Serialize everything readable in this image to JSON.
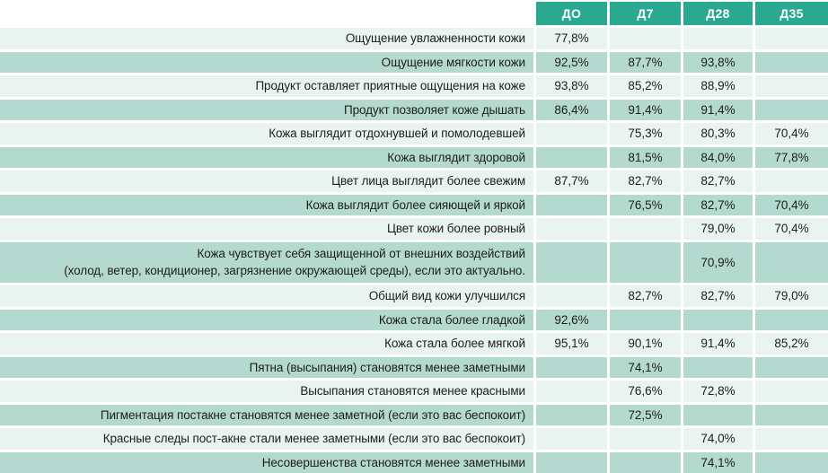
{
  "chart_data": {
    "type": "table",
    "title": "",
    "columns": [
      "ДО",
      "Д7",
      "Д28",
      "Д35"
    ],
    "value_unit": "%",
    "rows": [
      {
        "label": "Ощущение увлажненности кожи",
        "values": [
          77.8,
          null,
          null,
          null
        ]
      },
      {
        "label": "Ощущение мягкости кожи",
        "values": [
          92.5,
          87.7,
          93.8,
          null
        ]
      },
      {
        "label": "Продукт оставляет приятные ощущения на коже",
        "values": [
          93.8,
          85.2,
          88.9,
          null
        ]
      },
      {
        "label": "Продукт позволяет коже дышать",
        "values": [
          86.4,
          91.4,
          91.4,
          null
        ]
      },
      {
        "label": "Кожа выглядит отдохнувшей и помолодевшей",
        "values": [
          null,
          75.3,
          80.3,
          70.4
        ]
      },
      {
        "label": "Кожа выглядит здоровой",
        "values": [
          null,
          81.5,
          84.0,
          77.8
        ]
      },
      {
        "label": "Цвет лица выглядит более свежим",
        "values": [
          87.7,
          82.7,
          82.7,
          null
        ]
      },
      {
        "label": "Кожа выглядит более сияющей и яркой",
        "values": [
          null,
          76.5,
          82.7,
          70.4
        ]
      },
      {
        "label": "Цвет кожи более ровный",
        "values": [
          null,
          null,
          79.0,
          70.4
        ]
      },
      {
        "label": "Кожа чувствует себя защищенной от внешних воздействий (холод, ветер, кондиционер, загрязнение окружающей среды), если это актуально.",
        "values": [
          null,
          null,
          70.9,
          null
        ]
      },
      {
        "label": "Общий вид кожи улучшился",
        "values": [
          null,
          82.7,
          82.7,
          79.0
        ]
      },
      {
        "label": "Кожа стала более гладкой",
        "values": [
          92.6,
          null,
          null,
          null
        ]
      },
      {
        "label": "Кожа стала более мягкой",
        "values": [
          95.1,
          90.1,
          91.4,
          85.2
        ]
      },
      {
        "label": "Пятна (высыпания) становятся менее заметными",
        "values": [
          null,
          74.1,
          null,
          null
        ]
      },
      {
        "label": "Высыпания становятся менее красными",
        "values": [
          null,
          76.6,
          72.8,
          null
        ]
      },
      {
        "label": "Пигментация постакне становятся менее заметной (если это вас беспокоит)",
        "values": [
          null,
          72.5,
          null,
          null
        ]
      },
      {
        "label": "Красные следы пост-акне стали менее заметными (если это вас беспокоит)",
        "values": [
          null,
          null,
          74.0,
          null
        ]
      },
      {
        "label": "Несовершенства становятся менее заметными",
        "values": [
          null,
          null,
          74.1,
          null
        ]
      }
    ]
  },
  "table": {
    "columns": [
      "ДО",
      "Д7",
      "Д28",
      "Д35"
    ],
    "colors": {
      "header_bg": "#2ba890",
      "header_text": "#ffffff",
      "row_light": "#e9f4f1",
      "row_dark": "#b4dacf",
      "text": "#1d1d1b"
    },
    "rows": [
      {
        "label": "Ощущение увлажненности кожи",
        "values": [
          "77,8%",
          "",
          "",
          ""
        ]
      },
      {
        "label": "Ощущение мягкости кожи",
        "values": [
          "92,5%",
          "87,7%",
          "93,8%",
          ""
        ]
      },
      {
        "label": "Продукт оставляет приятные ощущения на коже",
        "values": [
          "93,8%",
          "85,2%",
          "88,9%",
          ""
        ]
      },
      {
        "label": "Продукт позволяет коже дышать",
        "values": [
          "86,4%",
          "91,4%",
          "91,4%",
          ""
        ]
      },
      {
        "label": "Кожа выглядит отдохнувшей и помолодевшей",
        "values": [
          "",
          "75,3%",
          "80,3%",
          "70,4%"
        ]
      },
      {
        "label": "Кожа выглядит здоровой",
        "values": [
          "",
          "81,5%",
          "84,0%",
          "77,8%"
        ]
      },
      {
        "label": "Цвет лица выглядит более свежим",
        "values": [
          "87,7%",
          "82,7%",
          "82,7%",
          ""
        ]
      },
      {
        "label": "Кожа выглядит более сияющей и яркой",
        "values": [
          "",
          "76,5%",
          "82,7%",
          "70,4%"
        ]
      },
      {
        "label": "Цвет кожи более ровный",
        "values": [
          "",
          "",
          "79,0%",
          "70,4%"
        ]
      },
      {
        "label": "Кожа чувствует себя защищенной от внешних воздействий",
        "label_line2": "(холод, ветер, кондиционер, загрязнение окружающей среды), если это актуально.",
        "tall": true,
        "values": [
          "",
          "",
          "70,9%",
          ""
        ]
      },
      {
        "label": "Общий вид кожи улучшился",
        "values": [
          "",
          "82,7%",
          "82,7%",
          "79,0%"
        ]
      },
      {
        "label": "Кожа стала более гладкой",
        "values": [
          "92,6%",
          "",
          "",
          ""
        ]
      },
      {
        "label": "Кожа стала более мягкой",
        "values": [
          "95,1%",
          "90,1%",
          "91,4%",
          "85,2%"
        ]
      },
      {
        "label": "Пятна (высыпания) становятся менее заметными",
        "values": [
          "",
          "74,1%",
          "",
          ""
        ]
      },
      {
        "label": "Высыпания становятся менее красными",
        "values": [
          "",
          "76,6%",
          "72,8%",
          ""
        ]
      },
      {
        "label": "Пигментация постакне  становятся менее заметной (если это вас беспокоит)",
        "values": [
          "",
          "72,5%",
          "",
          ""
        ]
      },
      {
        "label": "Красные следы пост-акне стали менее заметными (если это вас беспокоит)",
        "values": [
          "",
          "",
          "74,0%",
          ""
        ]
      },
      {
        "label": "Несовершенства становятся менее заметными",
        "values": [
          "",
          "",
          "74,1%",
          ""
        ]
      }
    ]
  }
}
